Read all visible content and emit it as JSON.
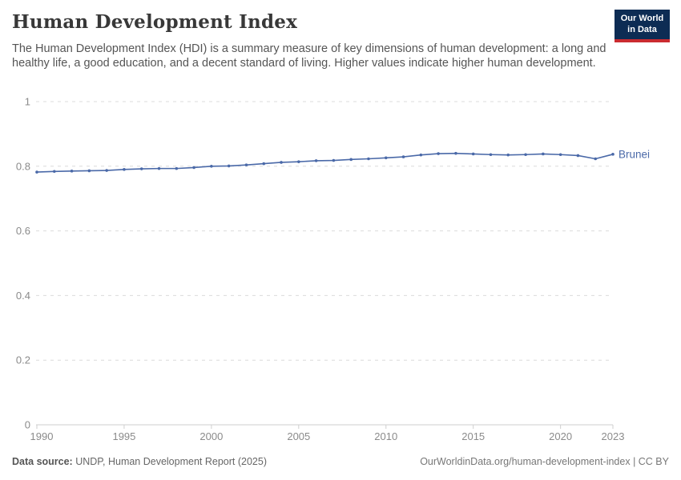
{
  "header": {
    "title": "Human Development Index",
    "subtitle": "The Human Development Index (HDI) is a summary measure of key dimensions of human development: a long and healthy life, a good education, and a decent standard of living. Higher values indicate higher human development.",
    "logo": {
      "line1": "Our World",
      "line2": "in Data"
    }
  },
  "chart_data": {
    "type": "line",
    "title": "Human Development Index",
    "entity_label": "Brunei",
    "x": [
      1990,
      1991,
      1992,
      1993,
      1994,
      1995,
      1996,
      1997,
      1998,
      1999,
      2000,
      2001,
      2002,
      2003,
      2004,
      2005,
      2006,
      2007,
      2008,
      2009,
      2010,
      2011,
      2012,
      2013,
      2014,
      2015,
      2016,
      2017,
      2018,
      2019,
      2020,
      2021,
      2022,
      2023
    ],
    "series": [
      {
        "name": "Brunei",
        "color": "#4a69a8",
        "values": [
          0.782,
          0.784,
          0.785,
          0.786,
          0.787,
          0.79,
          0.792,
          0.793,
          0.793,
          0.796,
          0.8,
          0.801,
          0.804,
          0.808,
          0.812,
          0.814,
          0.817,
          0.818,
          0.821,
          0.823,
          0.826,
          0.829,
          0.835,
          0.839,
          0.84,
          0.838,
          0.836,
          0.835,
          0.836,
          0.838,
          0.836,
          0.833,
          0.823,
          0.837
        ]
      }
    ],
    "xlabel": "",
    "ylabel": "",
    "ylim": [
      0,
      1
    ],
    "yticks": [
      0,
      0.2,
      0.4,
      0.6,
      0.8,
      1
    ],
    "xticks": [
      1990,
      1995,
      2000,
      2005,
      2010,
      2015,
      2020,
      2023
    ],
    "grid": "horizontal-dashed",
    "legend_position": "end-of-line-label"
  },
  "footer": {
    "source_label": "Data source:",
    "source_text": " UNDP, Human Development Report (2025)",
    "link_text": "OurWorldinData.org/human-development-index | CC BY"
  },
  "colors": {
    "accent_blue": "#4a69a8",
    "grid_line": "#dcdcdc",
    "axis_line": "#cfcfcf",
    "tick_text": "#8b8b8b",
    "title_text": "#383838",
    "subtitle_text": "#555555",
    "footer_text": "#666666",
    "logo_bg": "#0d2c54",
    "logo_accent": "#ca2b30"
  }
}
